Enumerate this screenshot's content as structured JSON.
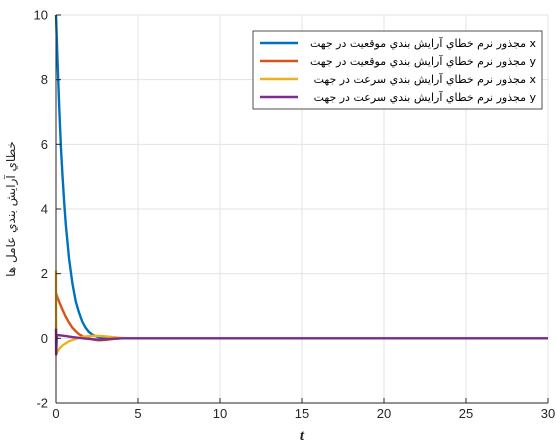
{
  "chart_data": {
    "type": "line",
    "xlabel": "t",
    "ylabel": "خطاي آرايش بندي عامل ها",
    "xlim": [
      0,
      30
    ],
    "ylim": [
      -2,
      10
    ],
    "xticks": [
      0,
      5,
      10,
      15,
      20,
      25,
      30
    ],
    "yticks": [
      -2,
      0,
      2,
      4,
      6,
      8,
      10
    ],
    "grid": true,
    "legend_position": "top-right",
    "series": [
      {
        "name": "مجذور نرم خطاي آرايش بندي موقعيت در جهت x",
        "color": "#0072BD",
        "x": [
          0,
          0.1,
          0.2,
          0.3,
          0.4,
          0.5,
          0.6,
          0.8,
          1.0,
          1.2,
          1.4,
          1.6,
          1.8,
          2.0,
          2.2,
          2.5,
          2.8,
          3.0,
          3.5,
          4,
          5,
          6,
          10,
          20,
          30
        ],
        "y": [
          10,
          8.5,
          7.1,
          5.9,
          5.0,
          4.2,
          3.5,
          2.45,
          1.7,
          1.15,
          0.8,
          0.52,
          0.33,
          0.2,
          0.12,
          0.05,
          0.02,
          0.01,
          0,
          0,
          0,
          0,
          0,
          0,
          0
        ]
      },
      {
        "name": "مجذور نرم خطاي آرايش بندي موقعيت در جهت y",
        "color": "#D95319",
        "x": [
          0,
          0.1,
          0.2,
          0.3,
          0.4,
          0.6,
          0.8,
          1.0,
          1.2,
          1.4,
          1.6,
          1.8,
          2.0,
          2.3,
          2.6,
          3.0,
          3.5,
          4,
          5,
          10,
          20,
          30
        ],
        "y": [
          1.4,
          1.25,
          1.12,
          1.0,
          0.88,
          0.66,
          0.48,
          0.33,
          0.22,
          0.13,
          0.07,
          0.03,
          0.0,
          -0.04,
          -0.06,
          -0.05,
          -0.02,
          0,
          0,
          0,
          0,
          0
        ]
      },
      {
        "name": "مجذور نرم خطاي آرايش بندي سرعت در جهت x",
        "color": "#EDB120",
        "x": [
          0,
          0.01,
          0.05,
          0.1,
          0.2,
          0.4,
          0.6,
          0.8,
          1.0,
          1.3,
          1.6,
          2.0,
          2.4,
          2.8,
          3.2,
          3.6,
          4.0,
          4.5,
          5,
          6,
          10,
          20,
          30
        ],
        "y": [
          2.1,
          -0.5,
          -0.45,
          -0.4,
          -0.32,
          -0.22,
          -0.15,
          -0.09,
          -0.05,
          0.0,
          0.04,
          0.07,
          0.08,
          0.07,
          0.05,
          0.03,
          0.01,
          0,
          0,
          0,
          0,
          0,
          0
        ]
      },
      {
        "name": "مجذور نرم خطاي آرايش بندي سرعت در جهت y",
        "color": "#7E2F8E",
        "x": [
          0,
          0.01,
          0.05,
          0.1,
          0.3,
          0.6,
          1.0,
          1.5,
          2.0,
          2.5,
          3.0,
          3.5,
          4,
          5,
          10,
          20,
          30
        ],
        "y": [
          0.3,
          -0.5,
          0.05,
          0.1,
          0.09,
          0.07,
          0.04,
          0.01,
          -0.02,
          -0.04,
          -0.03,
          -0.01,
          0,
          0,
          0,
          0,
          0
        ]
      }
    ]
  }
}
